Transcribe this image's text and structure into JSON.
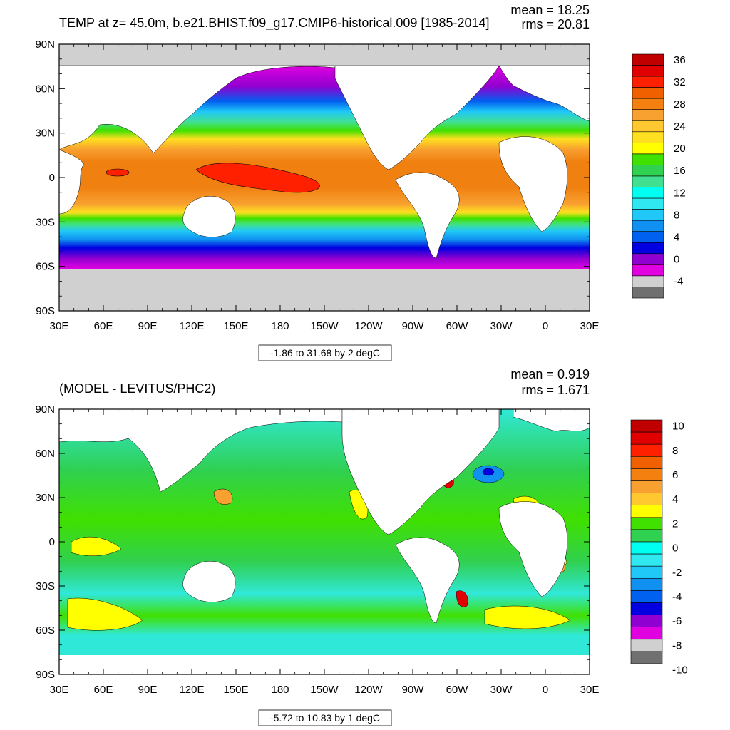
{
  "chart_data": [
    {
      "type": "heatmap",
      "title": "TEMP at z=  45.0m, b.e21.BHIST.f09_g17.CMIP6-historical.009 [1985-2014]",
      "stats": {
        "mean": "mean = 18.25",
        "rms": "rms = 20.81"
      },
      "x_ticks": [
        "30E",
        "60E",
        "90E",
        "120E",
        "150E",
        "180",
        "150W",
        "120W",
        "90W",
        "60W",
        "30W",
        "0",
        "30E"
      ],
      "y_ticks": [
        "90N",
        "60N",
        "30N",
        "0",
        "30S",
        "60S",
        "90S"
      ],
      "range_label": "-1.86 to 31.68 by 2 degC",
      "colorbar": {
        "labels": [
          "36",
          "32",
          "28",
          "24",
          "20",
          "16",
          "12",
          "8",
          "4",
          "0",
          "-4"
        ],
        "colors": [
          "#c00000",
          "#e00000",
          "#ff2000",
          "#f06000",
          "#f48010",
          "#f8a030",
          "#ffc830",
          "#ffe020",
          "#ffff00",
          "#40e000",
          "#30d050",
          "#40e090",
          "#00fff0",
          "#30e8f0",
          "#20c8f8",
          "#1090f0",
          "#0060f0",
          "#0000e0",
          "#9000d0",
          "#e000e0",
          "#d0d0d0",
          "#707070"
        ]
      }
    },
    {
      "type": "heatmap",
      "title": "(MODEL - LEVITUS/PHC2)",
      "stats": {
        "mean": "mean = 0.919",
        "rms": "rms = 1.671"
      },
      "x_ticks": [
        "30E",
        "60E",
        "90E",
        "120E",
        "150E",
        "180",
        "150W",
        "120W",
        "90W",
        "60W",
        "30W",
        "0",
        "30E"
      ],
      "y_ticks": [
        "90N",
        "60N",
        "30N",
        "0",
        "30S",
        "60S",
        "90S"
      ],
      "range_label": "-5.72 to 10.83 by 1 degC",
      "colorbar": {
        "labels": [
          "10",
          "8",
          "6",
          "4",
          "2",
          "0",
          "-2",
          "-4",
          "-6",
          "-8",
          "-10"
        ],
        "colors": [
          "#c00000",
          "#e00000",
          "#ff2000",
          "#f06000",
          "#f48010",
          "#f8a030",
          "#ffc830",
          "#ffff00",
          "#40e000",
          "#30d050",
          "#00fff0",
          "#30e8f0",
          "#20c8f8",
          "#1090f0",
          "#0060f0",
          "#0000e0",
          "#9000d0",
          "#e000e0",
          "#d0d0d0",
          "#707070"
        ]
      }
    }
  ]
}
